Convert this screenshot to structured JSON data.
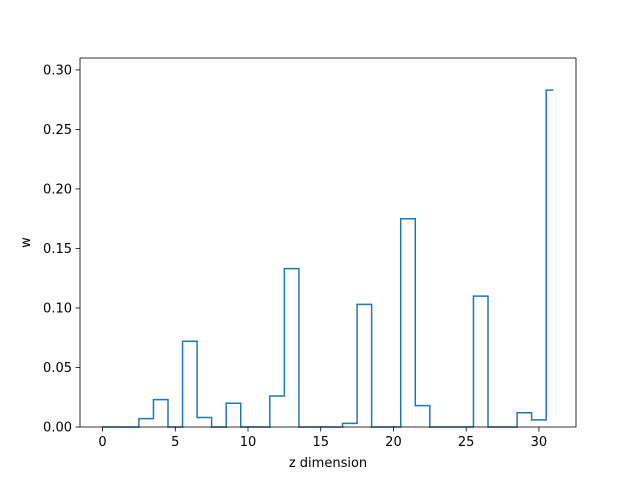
{
  "chart_data": {
    "type": "line",
    "drawstyle": "steps-mid",
    "title": "",
    "xlabel": "z dimension",
    "ylabel": "w",
    "xlim": [
      -1.55,
      32.55
    ],
    "ylim": [
      0,
      0.31
    ],
    "grid": false,
    "xticks": [
      0,
      5,
      10,
      15,
      20,
      25,
      30
    ],
    "xtick_labels": [
      "0",
      "5",
      "10",
      "15",
      "20",
      "25",
      "30"
    ],
    "yticks": [
      0,
      0.05,
      0.1,
      0.15,
      0.2,
      0.25,
      0.3
    ],
    "ytick_labels": [
      "0.00",
      "0.05",
      "0.10",
      "0.15",
      "0.20",
      "0.25",
      "0.30"
    ],
    "color": "#1f77b4",
    "series": [
      {
        "x": [
          0,
          1,
          2,
          3,
          4,
          5,
          6,
          7,
          8,
          9,
          10,
          11,
          12,
          13,
          14,
          15,
          16,
          17,
          18,
          19,
          20,
          21,
          22,
          23,
          24,
          25,
          26,
          27,
          28,
          29,
          30,
          31
        ],
        "values": [
          0,
          0,
          0,
          0.007,
          0.023,
          0,
          0.072,
          0.008,
          0,
          0.02,
          0,
          0,
          0.026,
          0.133,
          0,
          0,
          0,
          0.003,
          0.103,
          0,
          0,
          0.175,
          0.018,
          0,
          0,
          0,
          0.11,
          0,
          0,
          0.012,
          0.006,
          0.283
        ]
      }
    ]
  }
}
